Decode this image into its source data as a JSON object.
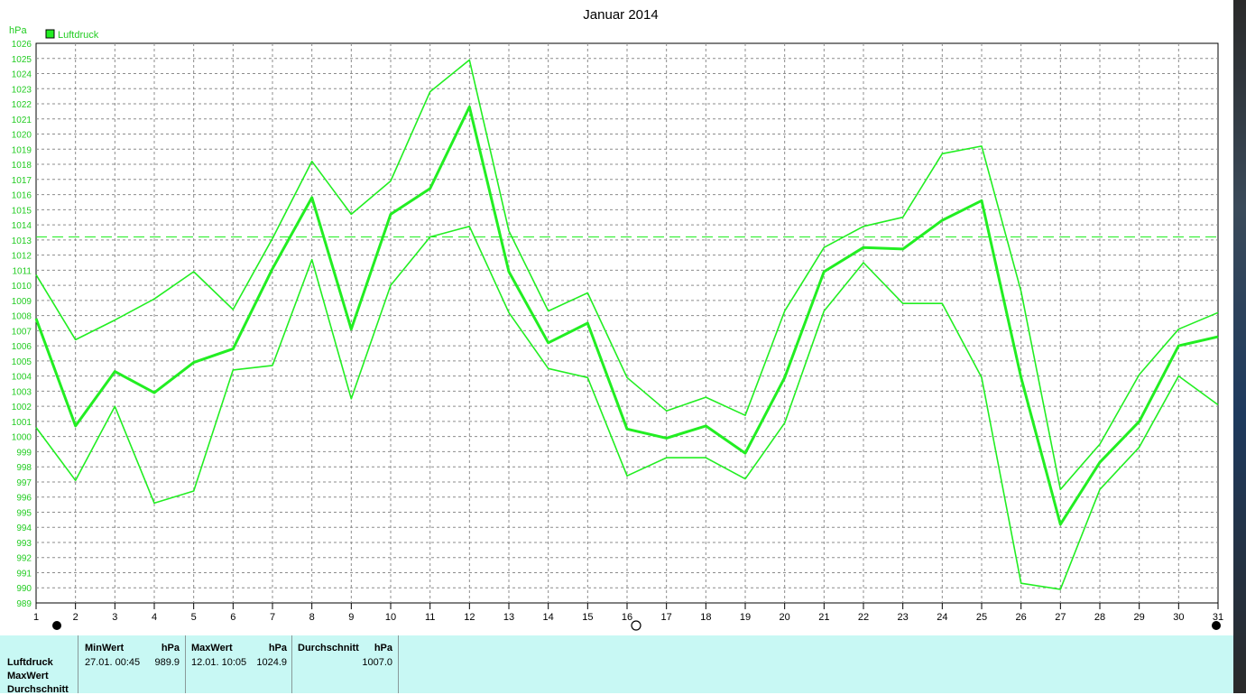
{
  "chart_data": {
    "type": "line",
    "title": "Januar 2014",
    "ylabel": "hPa",
    "legend": "Luftdruck",
    "ylim": [
      989,
      1026
    ],
    "yticks": [
      989,
      990,
      991,
      992,
      993,
      994,
      995,
      996,
      997,
      998,
      999,
      1000,
      1001,
      1002,
      1003,
      1004,
      1005,
      1006,
      1007,
      1008,
      1009,
      1010,
      1011,
      1012,
      1013,
      1014,
      1015,
      1016,
      1017,
      1018,
      1019,
      1020,
      1021,
      1022,
      1023,
      1024,
      1025,
      1026
    ],
    "x": [
      1,
      2,
      3,
      4,
      5,
      6,
      7,
      8,
      9,
      10,
      11,
      12,
      13,
      14,
      15,
      16,
      17,
      18,
      19,
      20,
      21,
      22,
      23,
      24,
      25,
      26,
      27,
      28,
      29,
      30,
      31
    ],
    "reference_line": 1013.2,
    "grid": true,
    "series": [
      {
        "name": "Max",
        "values": [
          1010.7,
          1006.4,
          1007.7,
          1009.1,
          1010.9,
          1008.4,
          1013.1,
          1018.2,
          1014.7,
          1016.9,
          1022.8,
          1024.9,
          1013.6,
          1008.3,
          1009.5,
          1003.9,
          1001.7,
          1002.6,
          1001.4,
          1008.3,
          1012.5,
          1013.9,
          1014.5,
          1018.7,
          1019.2,
          1009.6,
          996.5,
          999.5,
          1004.1,
          1007.1,
          1008.2
        ]
      },
      {
        "name": "Durchschnitt",
        "values": [
          1007.8,
          1000.7,
          1004.3,
          1002.9,
          1004.9,
          1005.8,
          1011.1,
          1015.8,
          1007.1,
          1014.7,
          1016.4,
          1021.8,
          1010.9,
          1006.2,
          1007.5,
          1000.5,
          999.9,
          1000.7,
          998.9,
          1003.9,
          1010.9,
          1012.5,
          1012.4,
          1014.3,
          1015.6,
          1003.9,
          994.2,
          998.3,
          1001.0,
          1006.0,
          1006.6
        ]
      },
      {
        "name": "Min",
        "values": [
          1000.6,
          997.1,
          1002.0,
          995.6,
          996.4,
          1004.4,
          1004.7,
          1011.7,
          1002.5,
          1010.0,
          1013.2,
          1013.9,
          1008.2,
          1004.5,
          1003.9,
          997.4,
          998.6,
          998.6,
          997.2,
          1000.9,
          1008.3,
          1011.5,
          1008.8,
          1008.8,
          1003.9,
          990.3,
          989.9,
          996.5,
          999.3,
          1004.0,
          1002.1
        ]
      }
    ],
    "markers": {
      "full_moon": [
        1,
        31
      ],
      "new_moon": [
        16
      ]
    }
  },
  "colors": {
    "line": "#22ee22",
    "axis_text": "#22cc22",
    "grid": "#8c8c8c",
    "panel_bg": "#c8f8f4"
  },
  "panel": {
    "row_labels": [
      "Luftdruck",
      "MaxWert",
      "Durchschnitt"
    ],
    "min_header": "MinWert",
    "min_unit": "hPa",
    "min_date": "27.01.  00:45",
    "min_value": "989.9",
    "max_header": "MaxWert",
    "max_unit": "hPa",
    "max_date": "12.01.  10:05",
    "max_value": "1024.9",
    "avg_header": "Durchschnitt",
    "avg_unit": "hPa",
    "avg_value": "1007.0"
  }
}
